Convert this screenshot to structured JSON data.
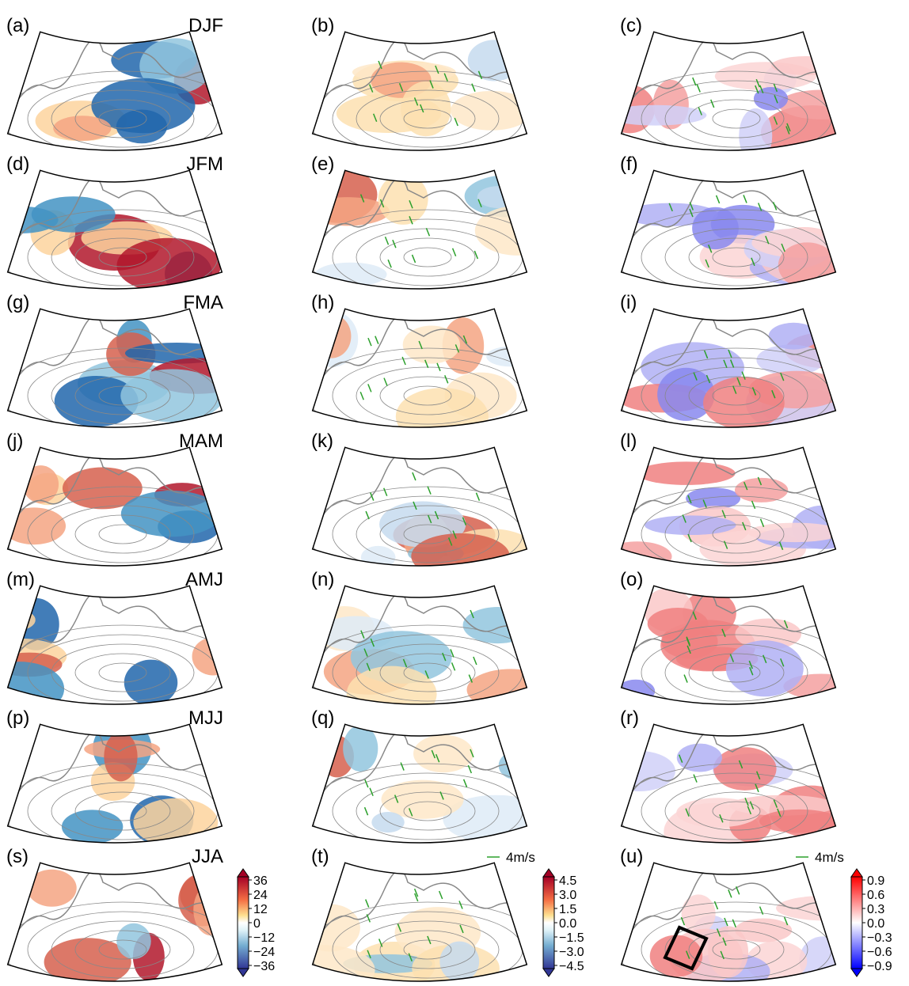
{
  "rows": [
    {
      "season": "DJF",
      "labels": [
        "(a)",
        "(b)",
        "(c)"
      ]
    },
    {
      "season": "JFM",
      "labels": [
        "(d)",
        "(e)",
        "(f)"
      ]
    },
    {
      "season": "FMA",
      "labels": [
        "(g)",
        "(h)",
        "(i)"
      ]
    },
    {
      "season": "MAM",
      "labels": [
        "(j)",
        "(k)",
        "(l)"
      ]
    },
    {
      "season": "AMJ",
      "labels": [
        "(m)",
        "(n)",
        "(o)"
      ]
    },
    {
      "season": "MJJ",
      "labels": [
        "(p)",
        "(q)",
        "(r)"
      ]
    },
    {
      "season": "JJA",
      "labels": [
        "(s)",
        "(t)",
        "(u)"
      ]
    }
  ],
  "colorbars": [
    {
      "ticks": [
        "36",
        "24",
        "12",
        "0",
        "−12",
        "−24",
        "−36"
      ]
    },
    {
      "ticks": [
        "4.5",
        "3.0",
        "1.5",
        "0.0",
        "−1.5",
        "−3.0",
        "−4.5"
      ]
    },
    {
      "ticks": [
        "0.9",
        "0.6",
        "0.3",
        "0.0",
        "−0.3",
        "−0.6",
        "−0.9"
      ]
    }
  ],
  "vector_keys": [
    "4m/s",
    "4m/s"
  ]
}
